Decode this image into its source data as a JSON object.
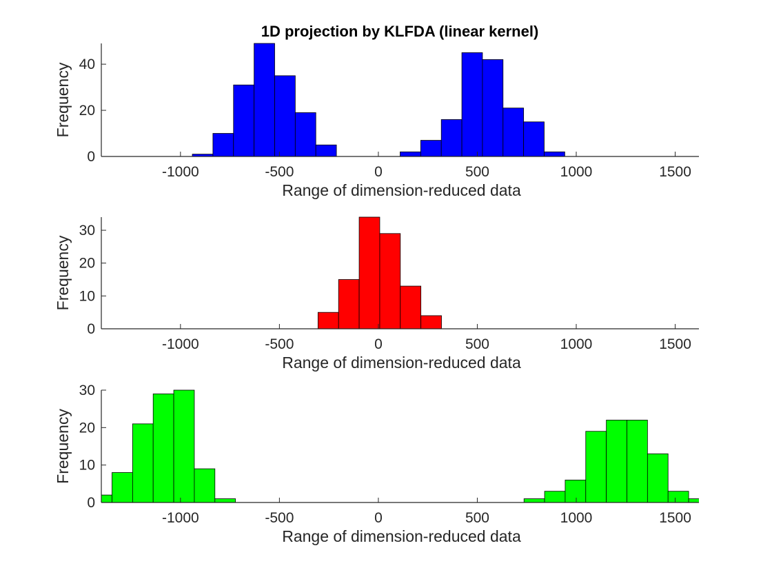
{
  "figure": {
    "title": "1D projection by KLFDA (linear kernel)"
  },
  "chart_data": [
    {
      "type": "bar",
      "subtype": "histogram",
      "title": "1D projection by KLFDA (linear kernel)",
      "xlabel": "Range of dimension-reduced data",
      "ylabel": "Frequency",
      "xlim": [
        -1400,
        1620
      ],
      "ylim": [
        0,
        49
      ],
      "xticks": [
        -1000,
        -500,
        0,
        500,
        1000,
        1500
      ],
      "xtick_labels": [
        "-1000",
        "-500",
        "0",
        "500",
        "1000",
        "1500"
      ],
      "yticks": [
        0,
        20,
        40
      ],
      "ytick_labels": [
        "0",
        "20",
        "40"
      ],
      "bin_width": 104,
      "color": "#0000ff",
      "bins": [
        {
          "x0": -940,
          "x1": -836,
          "count": 1
        },
        {
          "x0": -836,
          "x1": -732,
          "count": 10
        },
        {
          "x0": -732,
          "x1": -628,
          "count": 31
        },
        {
          "x0": -628,
          "x1": -524,
          "count": 49
        },
        {
          "x0": -524,
          "x1": -420,
          "count": 35
        },
        {
          "x0": -420,
          "x1": -316,
          "count": 19
        },
        {
          "x0": -316,
          "x1": -212,
          "count": 5
        },
        {
          "x0": 110,
          "x1": 214,
          "count": 2
        },
        {
          "x0": 214,
          "x1": 318,
          "count": 7
        },
        {
          "x0": 318,
          "x1": 422,
          "count": 16
        },
        {
          "x0": 422,
          "x1": 526,
          "count": 45
        },
        {
          "x0": 526,
          "x1": 630,
          "count": 42
        },
        {
          "x0": 630,
          "x1": 734,
          "count": 21
        },
        {
          "x0": 734,
          "x1": 838,
          "count": 15
        },
        {
          "x0": 838,
          "x1": 942,
          "count": 2
        }
      ]
    },
    {
      "type": "bar",
      "subtype": "histogram",
      "title": "",
      "xlabel": "Range of dimension-reduced data",
      "ylabel": "Frequency",
      "xlim": [
        -1400,
        1620
      ],
      "ylim": [
        0,
        34
      ],
      "xticks": [
        -1000,
        -500,
        0,
        500,
        1000,
        1500
      ],
      "xtick_labels": [
        "-1000",
        "-500",
        "0",
        "500",
        "1000",
        "1500"
      ],
      "yticks": [
        0,
        10,
        20,
        30
      ],
      "ytick_labels": [
        "0",
        "10",
        "20",
        "30"
      ],
      "bin_width": 104,
      "color": "#ff0000",
      "bins": [
        {
          "x0": -305,
          "x1": -201,
          "count": 5
        },
        {
          "x0": -201,
          "x1": -97,
          "count": 15
        },
        {
          "x0": -97,
          "x1": 7,
          "count": 34
        },
        {
          "x0": 7,
          "x1": 111,
          "count": 29
        },
        {
          "x0": 111,
          "x1": 215,
          "count": 13
        },
        {
          "x0": 215,
          "x1": 319,
          "count": 4
        }
      ]
    },
    {
      "type": "bar",
      "subtype": "histogram",
      "title": "",
      "xlabel": "Range of dimension-reduced data",
      "ylabel": "Frequency",
      "xlim": [
        -1400,
        1620
      ],
      "ylim": [
        0,
        30
      ],
      "xticks": [
        -1000,
        -500,
        0,
        500,
        1000,
        1500
      ],
      "xtick_labels": [
        "-1000",
        "-500",
        "0",
        "500",
        "1000",
        "1500"
      ],
      "yticks": [
        0,
        10,
        20,
        30
      ],
      "ytick_labels": [
        "0",
        "10",
        "20",
        "30"
      ],
      "bin_width": 104,
      "color": "#00ff00",
      "bins": [
        {
          "x0": -1450,
          "x1": -1346,
          "count": 2
        },
        {
          "x0": -1346,
          "x1": -1242,
          "count": 8
        },
        {
          "x0": -1242,
          "x1": -1138,
          "count": 21
        },
        {
          "x0": -1138,
          "x1": -1034,
          "count": 29
        },
        {
          "x0": -1034,
          "x1": -930,
          "count": 30
        },
        {
          "x0": -930,
          "x1": -826,
          "count": 9
        },
        {
          "x0": -826,
          "x1": -722,
          "count": 1
        },
        {
          "x0": 736,
          "x1": 840,
          "count": 1
        },
        {
          "x0": 840,
          "x1": 944,
          "count": 3
        },
        {
          "x0": 944,
          "x1": 1048,
          "count": 6
        },
        {
          "x0": 1048,
          "x1": 1152,
          "count": 19
        },
        {
          "x0": 1152,
          "x1": 1256,
          "count": 22
        },
        {
          "x0": 1256,
          "x1": 1360,
          "count": 22
        },
        {
          "x0": 1360,
          "x1": 1464,
          "count": 13
        },
        {
          "x0": 1464,
          "x1": 1568,
          "count": 3
        },
        {
          "x0": 1568,
          "x1": 1672,
          "count": 1
        }
      ]
    }
  ]
}
